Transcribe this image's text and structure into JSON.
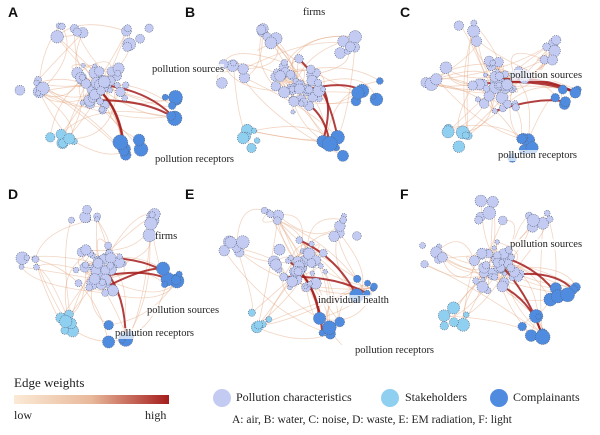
{
  "panels": [
    {
      "label": "A",
      "annotations": [
        "pollution sources",
        "pollution receptors"
      ]
    },
    {
      "label": "B",
      "annotations": [
        "firms"
      ]
    },
    {
      "label": "C",
      "annotations": [
        "pollution sources",
        "pollution receptors"
      ]
    },
    {
      "label": "D",
      "annotations": [
        "firms",
        "pollution sources",
        "pollution receptors"
      ]
    },
    {
      "label": "E",
      "annotations": [
        "individual health",
        "pollution receptors"
      ]
    },
    {
      "label": "F",
      "annotations": [
        "pollution sources"
      ]
    }
  ],
  "legend": {
    "edge_title": "Edge weights",
    "low": "low",
    "high": "high",
    "edge_colors": {
      "low": "#fbead6",
      "high": "#a51d1d"
    },
    "nodes": [
      {
        "label": "Pollution characteristics",
        "color": "#c3cbf2"
      },
      {
        "label": "Stakeholders",
        "color": "#8fd0f0"
      },
      {
        "label": "Complainants",
        "color": "#4f8ce0"
      }
    ],
    "caption": "A: air, B: water, C: noise, D: waste, E: EM radiation, F: light"
  }
}
